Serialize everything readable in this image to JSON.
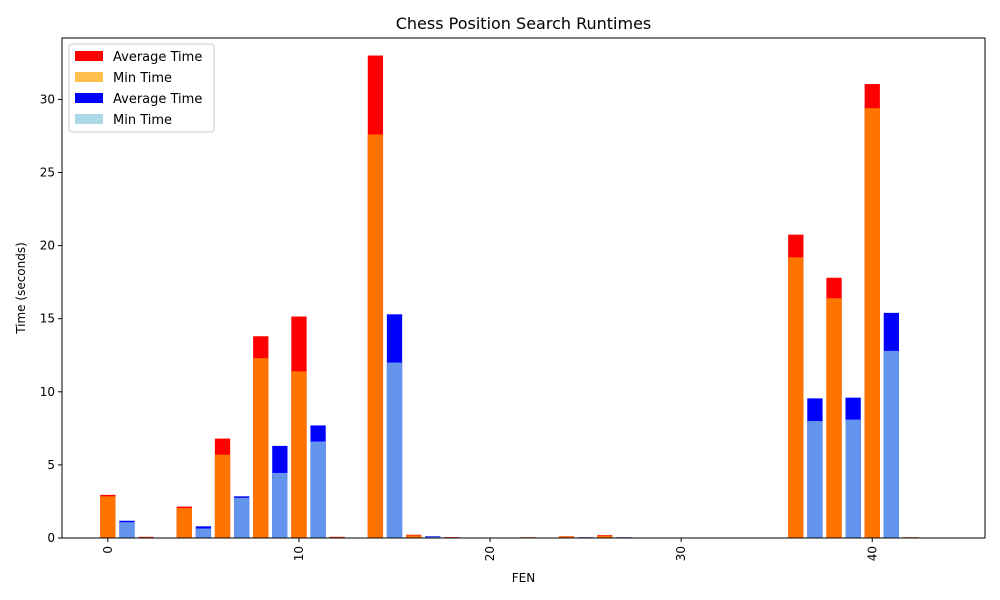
{
  "chart_data": {
    "type": "bar",
    "title": "Chess Position Search Runtimes",
    "xlabel": "FEN",
    "ylabel": "Time (seconds)",
    "xlim": [
      -2.4,
      45.9
    ],
    "ylim": [
      0,
      34.2
    ],
    "x_ticks": [
      0,
      10,
      20,
      30,
      40
    ],
    "y_ticks": [
      0,
      5,
      10,
      15,
      20,
      25,
      30
    ],
    "grid": false,
    "legend_position": "top-left",
    "series": [
      {
        "name": "Average Time",
        "color": "#ff0000",
        "x": [
          0,
          2,
          4,
          6,
          8,
          10,
          12,
          14,
          16,
          18,
          22,
          24,
          26,
          36,
          38,
          40,
          42
        ],
        "values": [
          2.95,
          0.08,
          2.15,
          6.8,
          13.8,
          15.15,
          0.08,
          33.0,
          0.22,
          0.06,
          0.05,
          0.12,
          0.2,
          20.75,
          17.8,
          31.05,
          0.05
        ]
      },
      {
        "name": "Min Time",
        "color": "#ffc04d",
        "x": [
          0,
          2,
          4,
          6,
          8,
          10,
          12,
          14,
          16,
          18,
          22,
          24,
          26,
          36,
          38,
          40,
          42
        ],
        "values": [
          2.85,
          0.05,
          2.05,
          5.7,
          12.3,
          11.4,
          0.05,
          27.6,
          0.18,
          0.04,
          0.04,
          0.1,
          0.16,
          19.2,
          16.4,
          29.4,
          0.04
        ]
      },
      {
        "name": "Average Time",
        "color": "#0000ff",
        "x": [
          1,
          5,
          7,
          9,
          11,
          15,
          17,
          25,
          27,
          37,
          39,
          41
        ],
        "values": [
          1.18,
          0.8,
          2.85,
          6.3,
          7.7,
          15.3,
          0.12,
          0.05,
          0.05,
          9.55,
          9.6,
          15.4
        ]
      },
      {
        "name": "Min Time",
        "color": "#add8e6",
        "x": [
          1,
          5,
          7,
          9,
          11,
          15,
          17,
          25,
          27,
          37,
          39,
          41
        ],
        "values": [
          1.08,
          0.65,
          2.75,
          4.45,
          6.6,
          12.0,
          0.08,
          0.04,
          0.04,
          8.0,
          8.1,
          12.8
        ]
      }
    ]
  }
}
